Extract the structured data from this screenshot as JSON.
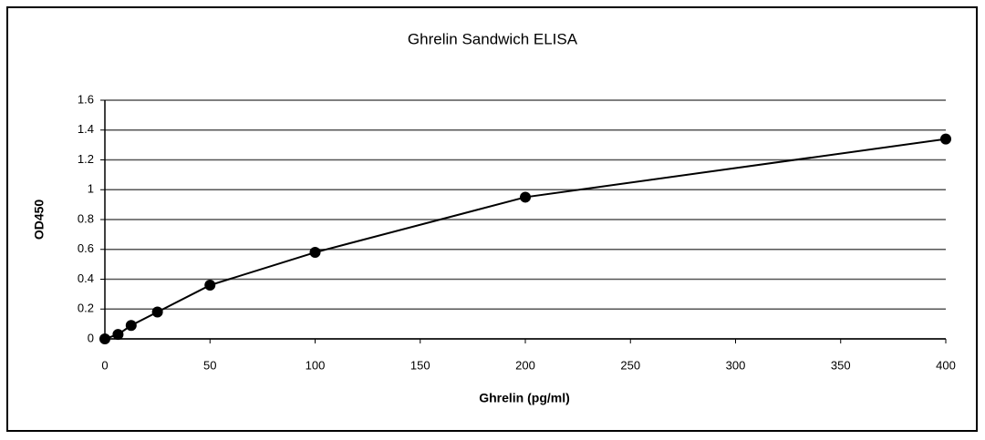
{
  "chart_data": {
    "type": "line",
    "title": "Ghrelin Sandwich ELISA",
    "x_label": "Ghrelin (pg/ml)",
    "y_label": "OD450",
    "x": [
      0,
      6.25,
      12.5,
      25,
      50,
      100,
      200,
      400
    ],
    "series": [
      {
        "name": "Ghrelin",
        "color": "#000000",
        "values": [
          0,
          0.03,
          0.09,
          0.18,
          0.36,
          0.58,
          0.95,
          1.34
        ]
      }
    ],
    "xlim": [
      0,
      400
    ],
    "xticks": [
      0,
      50,
      100,
      150,
      200,
      250,
      300,
      350,
      400
    ],
    "ylim": [
      0,
      1.6
    ],
    "yticks": [
      0,
      0.2,
      0.4,
      0.6,
      0.8,
      1,
      1.2,
      1.4,
      1.6
    ],
    "grid": true
  }
}
